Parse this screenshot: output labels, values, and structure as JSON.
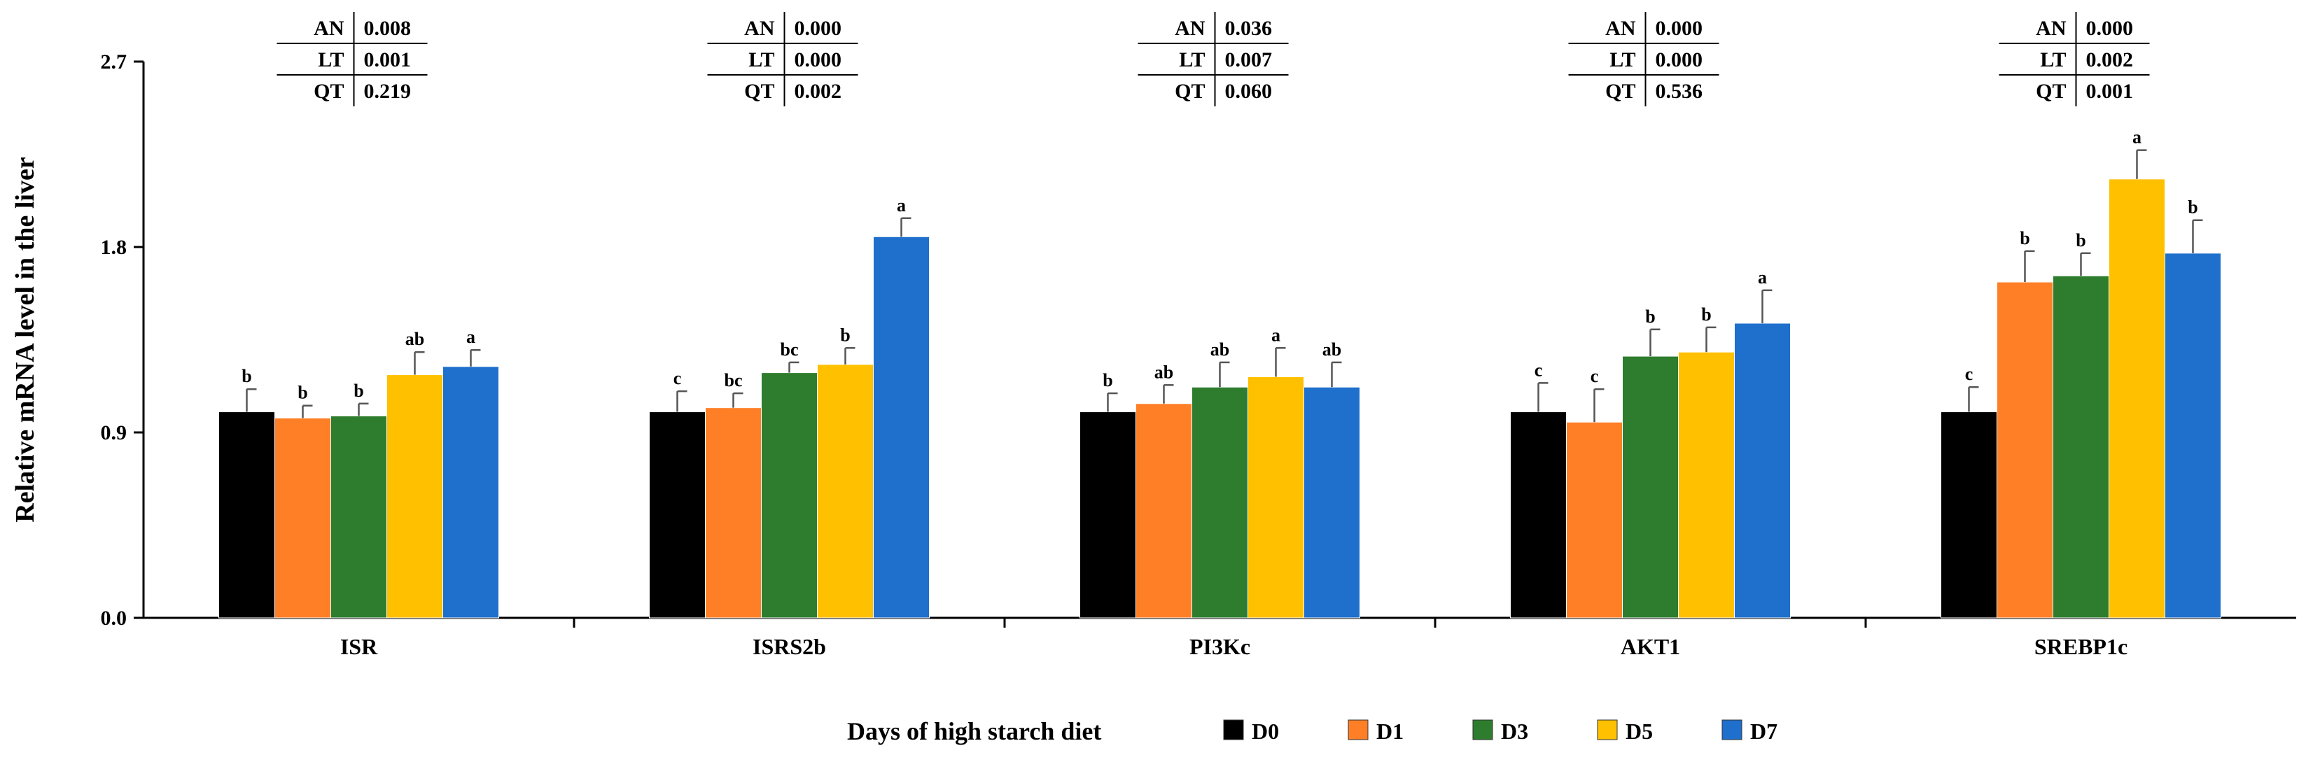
{
  "chart_data": {
    "type": "bar",
    "title": "",
    "xlabel": "",
    "ylabel": "Relative mRNA level  in the liver",
    "ylim": [
      0,
      2.7
    ],
    "yticks": [
      "0.0",
      "0.9",
      "1.8",
      "2.7"
    ],
    "categories": [
      "ISR",
      "ISRS2b",
      "PI3Kc",
      "AKT1",
      "SREBP1c"
    ],
    "legend_title": "Days of high starch diet",
    "legend_position": "bottom",
    "series": [
      {
        "name": "D0",
        "color": "#000000",
        "values": [
          1.0,
          1.0,
          1.0,
          1.0,
          1.0
        ],
        "errors": [
          0.11,
          0.1,
          0.09,
          0.14,
          0.12
        ],
        "letters": [
          "b",
          "c",
          "b",
          "c",
          "c"
        ]
      },
      {
        "name": "D1",
        "color": "#ff7f27",
        "values": [
          0.97,
          1.02,
          1.04,
          0.95,
          1.63
        ],
        "errors": [
          0.06,
          0.07,
          0.09,
          0.16,
          0.15
        ],
        "letters": [
          "b",
          "bc",
          "ab",
          "c",
          "b"
        ]
      },
      {
        "name": "D3",
        "color": "#2e7d2e",
        "values": [
          0.98,
          1.19,
          1.12,
          1.27,
          1.66
        ],
        "errors": [
          0.06,
          0.05,
          0.12,
          0.13,
          0.11
        ],
        "letters": [
          "b",
          "bc",
          "ab",
          "b",
          "b"
        ]
      },
      {
        "name": "D5",
        "color": "#ffc000",
        "values": [
          1.18,
          1.23,
          1.17,
          1.29,
          2.13
        ],
        "errors": [
          0.11,
          0.08,
          0.14,
          0.12,
          0.14
        ],
        "letters": [
          "ab",
          "b",
          "a",
          "b",
          "a"
        ]
      },
      {
        "name": "D7",
        "color": "#1f6fcc",
        "values": [
          1.22,
          1.85,
          1.12,
          1.43,
          1.77
        ],
        "errors": [
          0.08,
          0.09,
          0.12,
          0.16,
          0.16
        ],
        "letters": [
          "a",
          "a",
          "ab",
          "a",
          "b"
        ]
      }
    ],
    "stats_tables": [
      {
        "rows": [
          {
            "label": "AN",
            "value": "0.008"
          },
          {
            "label": "LT",
            "value": "0.001"
          },
          {
            "label": "QT",
            "value": "0.219"
          }
        ]
      },
      {
        "rows": [
          {
            "label": "AN",
            "value": "0.000"
          },
          {
            "label": "LT",
            "value": "0.000"
          },
          {
            "label": "QT",
            "value": "0.002"
          }
        ]
      },
      {
        "rows": [
          {
            "label": "AN",
            "value": "0.036"
          },
          {
            "label": "LT",
            "value": "0.007"
          },
          {
            "label": "QT",
            "value": "0.060"
          }
        ]
      },
      {
        "rows": [
          {
            "label": "AN",
            "value": "0.000"
          },
          {
            "label": "LT",
            "value": "0.000"
          },
          {
            "label": "QT",
            "value": "0.536"
          }
        ]
      },
      {
        "rows": [
          {
            "label": "AN",
            "value": "0.000"
          },
          {
            "label": "LT",
            "value": "0.002"
          },
          {
            "label": "QT",
            "value": "0.001"
          }
        ]
      }
    ]
  }
}
